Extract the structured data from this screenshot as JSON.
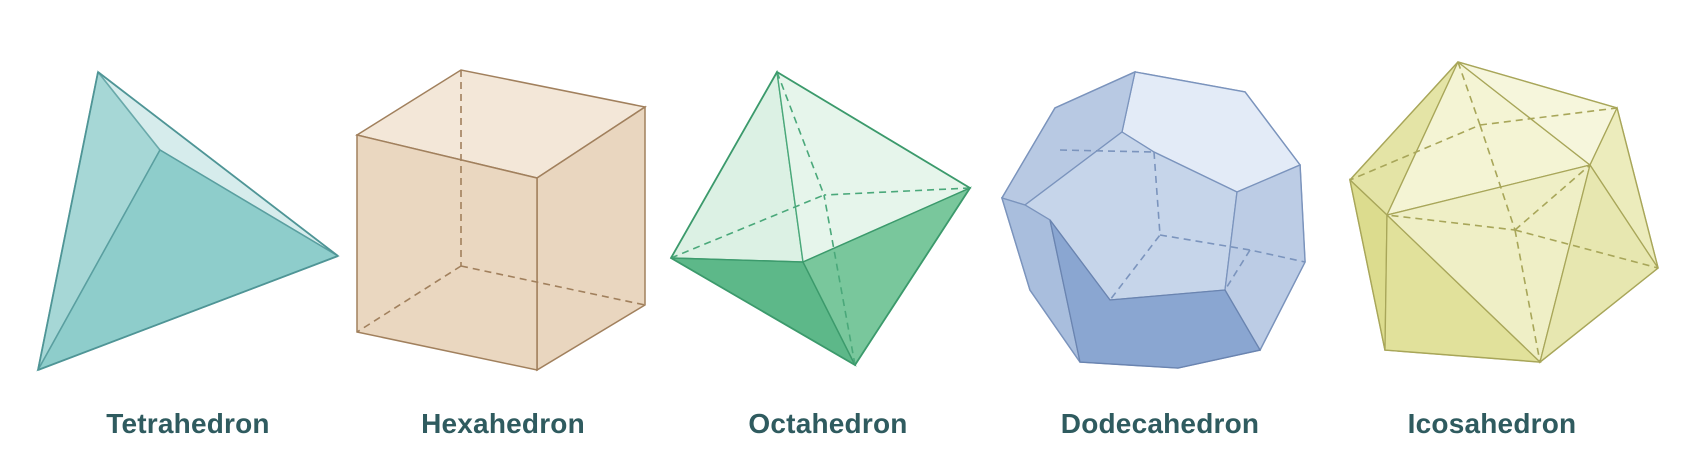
{
  "solids": [
    {
      "label": "Tetrahedron"
    },
    {
      "label": "Hexahedron"
    },
    {
      "label": "Octahedron"
    },
    {
      "label": "Dodecahedron"
    },
    {
      "label": "Icosahedron"
    }
  ]
}
